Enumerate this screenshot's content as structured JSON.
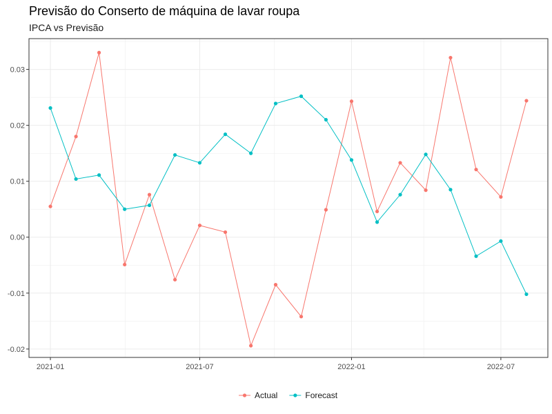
{
  "chart_data": {
    "type": "line",
    "title": "Previsão do Conserto de máquina de lavar roupa",
    "subtitle": "IPCA vs Previsão",
    "xlabel": "",
    "ylabel": "",
    "x": [
      "2021-01-01",
      "2021-02-01",
      "2021-03-01",
      "2021-04-01",
      "2021-05-01",
      "2021-06-01",
      "2021-07-01",
      "2021-08-01",
      "2021-09-01",
      "2021-10-01",
      "2021-11-01",
      "2021-12-01",
      "2022-01-01",
      "2022-02-01",
      "2022-03-01",
      "2022-04-01",
      "2022-05-01",
      "2022-06-01",
      "2022-07-01",
      "2022-08-01"
    ],
    "x_ticks": [
      "2021-01",
      "2021-07",
      "2022-01",
      "2022-07"
    ],
    "y_ticks": [
      "0.03",
      "0.02",
      "0.01",
      "0.00",
      "-0.01",
      "-0.02"
    ],
    "ylim": [
      -0.0215,
      0.0355
    ],
    "grid": true,
    "legend_position": "bottom",
    "series": [
      {
        "name": "Actual",
        "color": "#F8766D",
        "values": [
          0.0055,
          0.018,
          0.033,
          -0.0049,
          0.0076,
          -0.0076,
          0.0021,
          0.0009,
          -0.0194,
          -0.0085,
          -0.0142,
          0.0049,
          0.0243,
          0.0046,
          0.0133,
          0.0084,
          0.0321,
          0.0121,
          0.0072,
          0.0244
        ]
      },
      {
        "name": "Forecast",
        "color": "#00BFC4",
        "values": [
          0.0231,
          0.0104,
          0.0111,
          0.005,
          0.0057,
          0.0147,
          0.0133,
          0.0184,
          0.015,
          0.0239,
          0.0252,
          0.021,
          0.0138,
          0.0027,
          0.0076,
          0.0148,
          0.0085,
          -0.0034,
          -0.0007,
          -0.0102
        ]
      }
    ]
  }
}
